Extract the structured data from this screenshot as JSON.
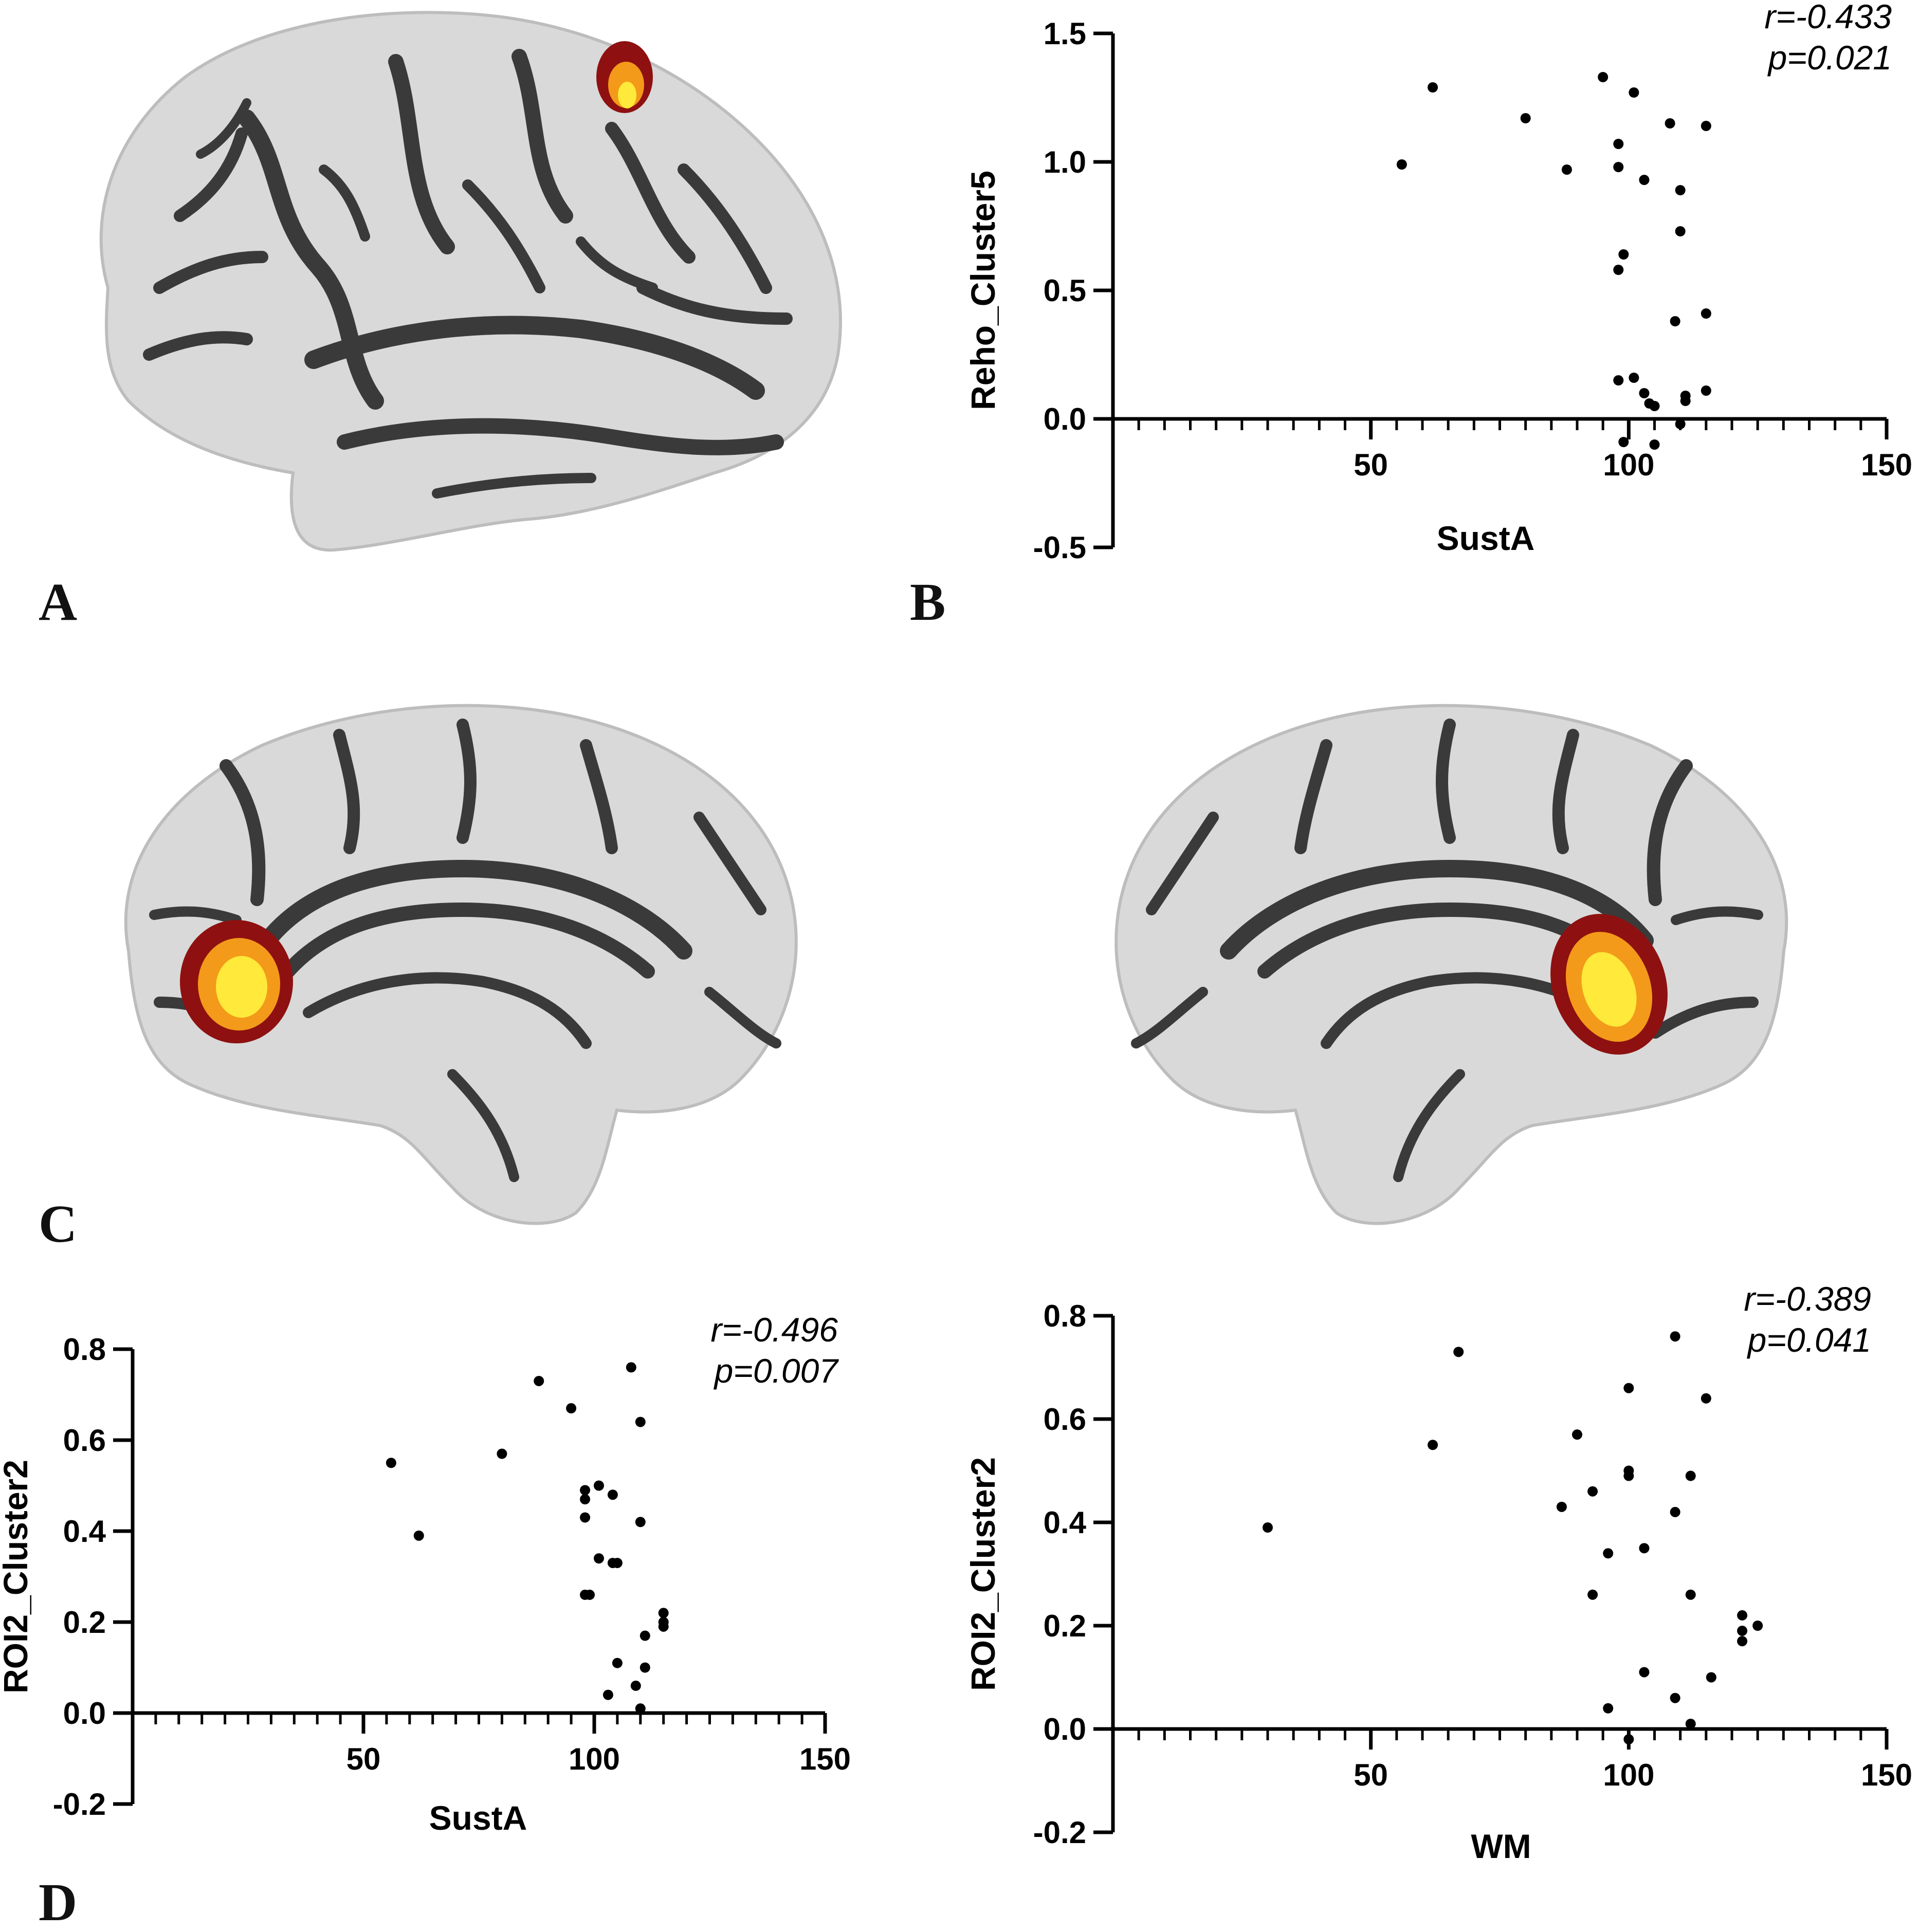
{
  "panel_labels": [
    "A",
    "B",
    "C",
    "D"
  ],
  "colors": {
    "cortex": "#d9d9d9",
    "sulcus": "#3a3a3a",
    "activation_core": "#ffe93a",
    "activation_mid": "#f39a1a",
    "activation_edge": "#8e1010",
    "points": "#000000"
  },
  "brain_views": [
    {
      "name": "lateral-surface",
      "panel": "A"
    },
    {
      "name": "medial-surface-left",
      "panel": "C"
    },
    {
      "name": "medial-surface-right",
      "panel": "C"
    }
  ],
  "chart_data": [
    {
      "id": "B",
      "type": "scatter",
      "xlabel": "SustA",
      "ylabel": "Reho_Cluster5",
      "xlim": [
        0,
        150
      ],
      "ylim": [
        -0.5,
        1.5
      ],
      "xticks": [
        50,
        100,
        150
      ],
      "yticks": [
        -0.5,
        0.0,
        0.5,
        1.0,
        1.5
      ],
      "xtick_labels": [
        "50",
        "100",
        "150"
      ],
      "ytick_labels": [
        "-0.5",
        "0.0",
        "0.5",
        "1.0",
        "1.5"
      ],
      "stat_r": "r=-0.433",
      "stat_p": "p=0.021",
      "grid": false,
      "points": [
        [
          56,
          0.99
        ],
        [
          62,
          1.29
        ],
        [
          80,
          1.17
        ],
        [
          88,
          0.97
        ],
        [
          95,
          1.33
        ],
        [
          98,
          1.07
        ],
        [
          98,
          0.98
        ],
        [
          98,
          0.58
        ],
        [
          99,
          0.64
        ],
        [
          101,
          1.27
        ],
        [
          103,
          0.93
        ],
        [
          108,
          1.15
        ],
        [
          110,
          0.89
        ],
        [
          110,
          0.73
        ],
        [
          111,
          0.07
        ],
        [
          111,
          0.09
        ],
        [
          115,
          1.14
        ],
        [
          115,
          0.41
        ],
        [
          115,
          0.11
        ],
        [
          109,
          0.38
        ],
        [
          98,
          0.15
        ],
        [
          101,
          0.16
        ],
        [
          103,
          0.1
        ],
        [
          104,
          0.06
        ],
        [
          105,
          0.05
        ],
        [
          110,
          -0.02
        ],
        [
          99,
          -0.09
        ],
        [
          105,
          -0.1
        ]
      ]
    },
    {
      "id": "D-left",
      "type": "scatter",
      "xlabel": "SustA",
      "ylabel": "ROI2_Cluster2",
      "xlim": [
        0,
        150
      ],
      "ylim": [
        -0.2,
        0.8
      ],
      "xticks": [
        50,
        100,
        150
      ],
      "yticks": [
        -0.2,
        0.0,
        0.2,
        0.4,
        0.6,
        0.8
      ],
      "xtick_labels": [
        "50",
        "100",
        "150"
      ],
      "ytick_labels": [
        "-0.2",
        "0.0",
        "0.2",
        "0.4",
        "0.6",
        "0.8"
      ],
      "stat_r": "r=-0.496",
      "stat_p": "p=0.007",
      "grid": false,
      "points": [
        [
          56,
          0.55
        ],
        [
          62,
          0.39
        ],
        [
          80,
          0.57
        ],
        [
          88,
          0.73
        ],
        [
          95,
          0.67
        ],
        [
          98,
          0.49
        ],
        [
          98,
          0.47
        ],
        [
          98,
          0.43
        ],
        [
          98,
          0.26
        ],
        [
          99,
          0.26
        ],
        [
          101,
          0.5
        ],
        [
          101,
          0.34
        ],
        [
          103,
          0.04
        ],
        [
          104,
          0.48
        ],
        [
          104,
          0.33
        ],
        [
          105,
          0.33
        ],
        [
          105,
          0.11
        ],
        [
          108,
          0.76
        ],
        [
          109,
          0.06
        ],
        [
          110,
          0.64
        ],
        [
          110,
          0.42
        ],
        [
          110,
          0.01
        ],
        [
          111,
          0.17
        ],
        [
          111,
          0.1
        ],
        [
          115,
          0.22
        ],
        [
          115,
          0.19
        ],
        [
          115,
          0.2
        ]
      ]
    },
    {
      "id": "D-right",
      "type": "scatter",
      "xlabel": "WM",
      "ylabel": "ROI2_Cluster2",
      "xlim": [
        0,
        150
      ],
      "ylim": [
        -0.2,
        0.8
      ],
      "xticks": [
        50,
        100,
        150
      ],
      "yticks": [
        -0.2,
        0.0,
        0.2,
        0.4,
        0.6,
        0.8
      ],
      "xtick_labels": [
        "50",
        "100",
        "150"
      ],
      "ytick_labels": [
        "-0.2",
        "0.0",
        "0.2",
        "0.4",
        "0.6",
        "0.8"
      ],
      "stat_r": "r=-0.389",
      "stat_p": "p=0.041",
      "grid": false,
      "points": [
        [
          30,
          0.39
        ],
        [
          62,
          0.55
        ],
        [
          67,
          0.73
        ],
        [
          87,
          0.43
        ],
        [
          90,
          0.57
        ],
        [
          93,
          0.46
        ],
        [
          93,
          0.26
        ],
        [
          96,
          0.34
        ],
        [
          96,
          0.04
        ],
        [
          100,
          0.66
        ],
        [
          100,
          0.5
        ],
        [
          100,
          0.49
        ],
        [
          100,
          -0.02
        ],
        [
          103,
          0.35
        ],
        [
          103,
          0.11
        ],
        [
          109,
          0.76
        ],
        [
          109,
          0.42
        ],
        [
          109,
          0.06
        ],
        [
          112,
          0.49
        ],
        [
          112,
          0.26
        ],
        [
          112,
          0.01
        ],
        [
          115,
          0.64
        ],
        [
          116,
          0.1
        ],
        [
          122,
          0.22
        ],
        [
          122,
          0.19
        ],
        [
          122,
          0.17
        ],
        [
          125,
          0.2
        ]
      ]
    }
  ]
}
